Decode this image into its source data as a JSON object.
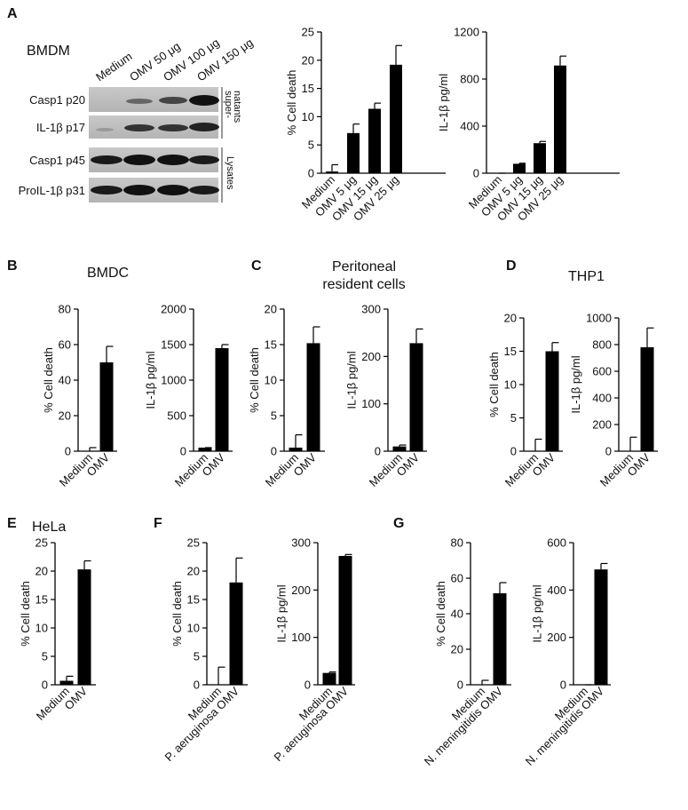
{
  "panels": [
    {
      "letter": "A",
      "title": "BMDM"
    },
    {
      "letter": "B",
      "title": "BMDC"
    },
    {
      "letter": "C",
      "title_lines": [
        "Peritoneal",
        "resident cells"
      ]
    },
    {
      "letter": "D",
      "title": "THP1"
    },
    {
      "letter": "E",
      "title": "HeLa"
    },
    {
      "letter": "F"
    },
    {
      "letter": "G"
    }
  ],
  "blot": {
    "lanes": [
      "Medium",
      "OMV 50 μg",
      "OMV 100 μg",
      "OMV 150 μg"
    ],
    "rows": [
      "Casp1 p20",
      "IL-1β p17",
      "Casp1 p45",
      "ProIL-1β p31"
    ],
    "supernatants_lines": [
      "super-",
      "natants"
    ],
    "lysates": "Lysates"
  },
  "chart_data": [
    {
      "type": "bar",
      "ylabel": "% Cell death",
      "categories": [
        "Medium",
        "OMV 5 μg",
        "OMV 15 μg",
        "OMV 25 μg"
      ],
      "values": [
        0.3,
        7.1,
        11.4,
        19.2
      ],
      "errors": [
        1.2,
        1.6,
        1.0,
        3.4
      ],
      "ylim": [
        0,
        25
      ],
      "yticks": [
        0,
        5,
        10,
        15,
        20,
        25
      ],
      "color": "#000000"
    },
    {
      "type": "bar",
      "ylabel": "IL-1β pg/ml",
      "categories": [
        "Medium",
        "OMV 5 μg",
        "OMV 15 μg",
        "OMV 25 μg"
      ],
      "values": [
        0,
        80,
        255,
        915
      ],
      "errors": [
        0,
        5,
        15,
        80
      ],
      "ylim": [
        0,
        1200
      ],
      "yticks": [
        0,
        400,
        800,
        1200
      ],
      "color": "#000000"
    },
    {
      "type": "bar",
      "ylabel": "% Cell death",
      "categories": [
        "Medium",
        "OMV"
      ],
      "values": [
        0,
        50
      ],
      "errors": [
        2,
        9
      ],
      "ylim": [
        0,
        80
      ],
      "yticks": [
        0,
        20,
        40,
        60,
        80
      ],
      "color": "#000000"
    },
    {
      "type": "bar",
      "ylabel": "IL-1β pg/ml",
      "categories": [
        "Medium",
        "OMV"
      ],
      "values": [
        50,
        1450
      ],
      "errors": [
        0,
        50
      ],
      "ylim": [
        0,
        2000
      ],
      "yticks": [
        0,
        500,
        1000,
        1500,
        2000
      ],
      "color": "#000000"
    },
    {
      "type": "bar",
      "ylabel": "% Cell death",
      "categories": [
        "Medium",
        "OMV"
      ],
      "values": [
        0.5,
        15.2
      ],
      "errors": [
        1.8,
        2.3
      ],
      "ylim": [
        0,
        20
      ],
      "yticks": [
        0,
        5,
        10,
        15,
        20
      ],
      "color": "#000000"
    },
    {
      "type": "bar",
      "ylabel": "IL-1β pg/ml",
      "categories": [
        "Medium",
        "OMV"
      ],
      "values": [
        10,
        228
      ],
      "errors": [
        3,
        30
      ],
      "ylim": [
        0,
        300
      ],
      "yticks": [
        0,
        100,
        200,
        300
      ],
      "color": "#000000"
    },
    {
      "type": "bar",
      "ylabel": "% Cell death",
      "categories": [
        "Medium",
        "OMV"
      ],
      "values": [
        0,
        15
      ],
      "errors": [
        1.8,
        1.3
      ],
      "ylim": [
        0,
        20
      ],
      "yticks": [
        0,
        5,
        10,
        15,
        20
      ],
      "color": "#000000"
    },
    {
      "type": "bar",
      "ylabel": "IL-1β pg/ml",
      "categories": [
        "Medium",
        "OMV"
      ],
      "values": [
        0,
        780
      ],
      "errors": [
        105,
        145
      ],
      "ylim": [
        0,
        1000
      ],
      "yticks": [
        0,
        200,
        400,
        600,
        800,
        1000
      ],
      "color": "#000000"
    },
    {
      "type": "bar",
      "ylabel": "% Cell death",
      "categories": [
        "Medium",
        "OMV"
      ],
      "values": [
        0.7,
        20.3
      ],
      "errors": [
        0.8,
        1.5
      ],
      "ylim": [
        0,
        25
      ],
      "yticks": [
        0,
        5,
        10,
        15,
        20,
        25
      ],
      "color": "#000000"
    },
    {
      "type": "bar",
      "ylabel": "% Cell death",
      "categories": [
        "Medium",
        "P. aeruginosa OMV"
      ],
      "values": [
        0,
        18
      ],
      "errors": [
        3.1,
        4.3
      ],
      "ylim": [
        0,
        25
      ],
      "yticks": [
        0,
        5,
        10,
        15,
        20,
        25
      ],
      "color": "#000000"
    },
    {
      "type": "bar",
      "ylabel": "IL-1β pg/ml",
      "categories": [
        "Medium",
        "P. aeruginosa OMV"
      ],
      "values": [
        25,
        272
      ],
      "errors": [
        2,
        3
      ],
      "ylim": [
        0,
        300
      ],
      "yticks": [
        0,
        100,
        200,
        300
      ],
      "color": "#000000"
    },
    {
      "type": "bar",
      "ylabel": "% Cell death",
      "categories": [
        "Medium",
        "N. meningitidis OMV"
      ],
      "values": [
        0,
        51.5
      ],
      "errors": [
        2.5,
        6
      ],
      "ylim": [
        0,
        80
      ],
      "yticks": [
        0,
        20,
        40,
        60,
        80
      ],
      "color": "#000000"
    },
    {
      "type": "bar",
      "ylabel": "IL-1β pg/ml",
      "categories": [
        "Medium",
        "N. meningitidis OMV"
      ],
      "values": [
        0,
        487
      ],
      "errors": [
        0,
        25
      ],
      "ylim": [
        0,
        600
      ],
      "yticks": [
        0,
        200,
        400,
        600
      ],
      "color": "#000000"
    }
  ]
}
